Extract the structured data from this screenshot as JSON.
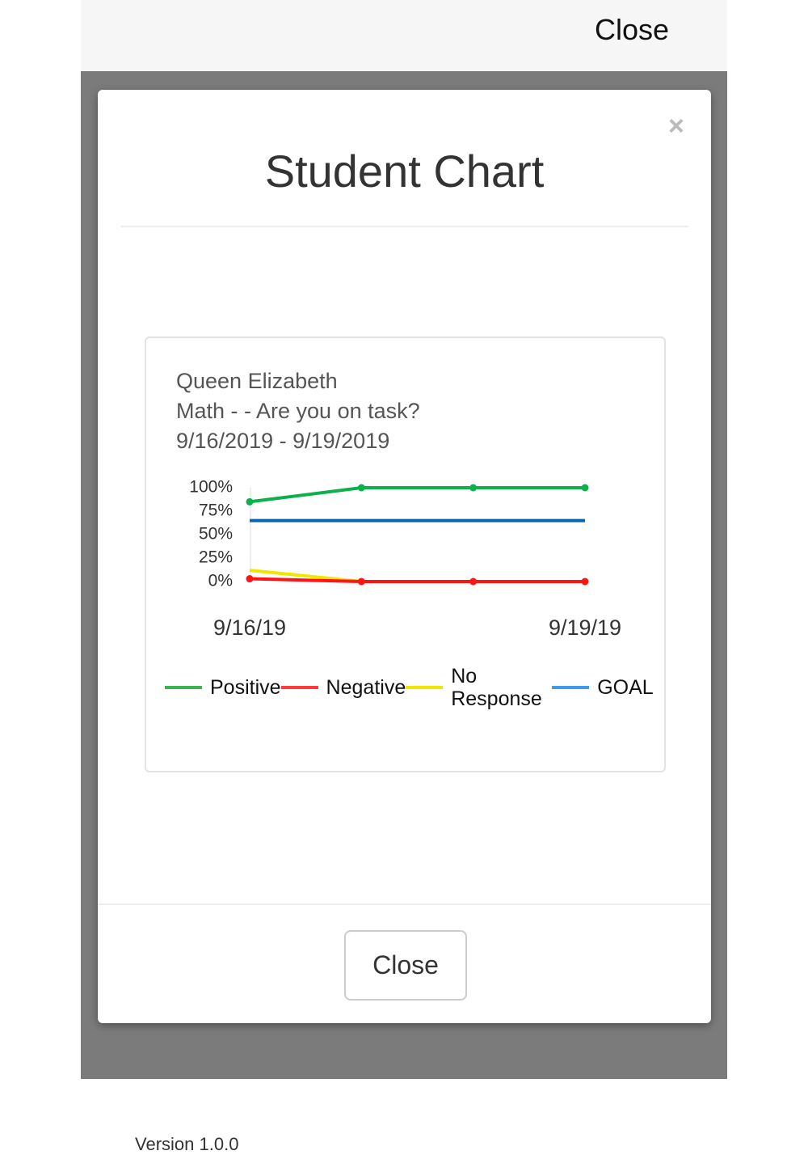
{
  "top_bar": {
    "close": "Close"
  },
  "modal": {
    "title": "Student Chart",
    "dismiss": "×",
    "close_button": "Close"
  },
  "footer": {
    "version": "Version 1.0.0"
  },
  "chart_data": {
    "type": "line",
    "title": [
      "Queen Elizabeth",
      "Math - - Are you on task?",
      "9/16/2019 - 9/19/2019"
    ],
    "categories": [
      "9/16/19",
      null,
      null,
      "9/19/19"
    ],
    "series": [
      {
        "name": "Positive",
        "color": "#0db14b",
        "legend_color": "#3cb44b",
        "markers": true,
        "values": [
          85,
          100,
          100,
          100
        ]
      },
      {
        "name": "Negative",
        "color": "#ff1414",
        "legend_color": "#ff3a3a",
        "markers": true,
        "values": [
          3,
          0,
          0,
          0
        ]
      },
      {
        "name": "No Response",
        "color": "#f0e600",
        "legend_color": "#f0e600",
        "markers": false,
        "values": [
          12,
          0,
          0,
          0
        ]
      },
      {
        "name": "GOAL",
        "color": "#0a64b4",
        "legend_color": "#3d9be9",
        "markers": false,
        "values": [
          65,
          65,
          65,
          65
        ]
      }
    ],
    "ylim": [
      0,
      100
    ],
    "yticks": [
      {
        "value": 0,
        "label": "0%"
      },
      {
        "value": 25,
        "label": "25%"
      },
      {
        "value": 50,
        "label": "50%"
      },
      {
        "value": 75,
        "label": "75%"
      },
      {
        "value": 100,
        "label": "100%"
      }
    ],
    "grid": false
  }
}
